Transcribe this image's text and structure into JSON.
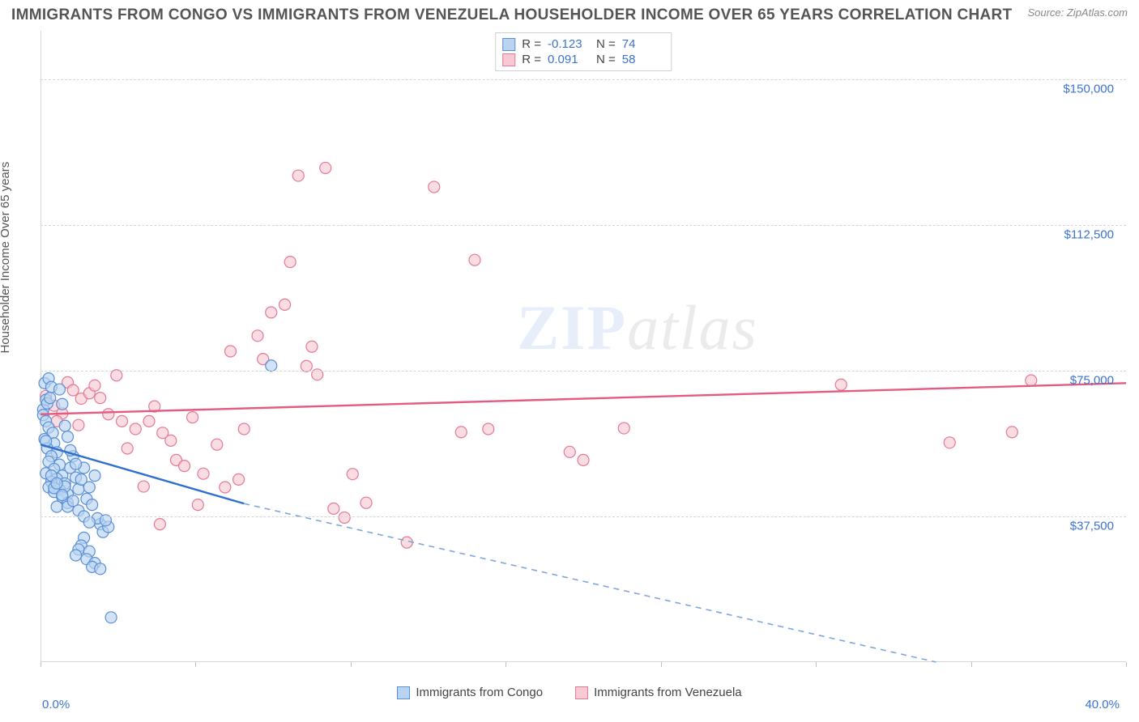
{
  "title": "IMMIGRANTS FROM CONGO VS IMMIGRANTS FROM VENEZUELA HOUSEHOLDER INCOME OVER 65 YEARS CORRELATION CHART",
  "source": "Source: ZipAtlas.com",
  "watermark_zip": "ZIP",
  "watermark_atlas": "atlas",
  "ylabel": "Householder Income Over 65 years",
  "chart": {
    "type": "scatter",
    "xlim": [
      0,
      40
    ],
    "ylim": [
      0,
      162500
    ],
    "xticks_minor": [
      0,
      5.71,
      11.43,
      17.14,
      22.86,
      28.57,
      34.29,
      40
    ],
    "y_gridlines": [
      37500,
      75000,
      112500,
      150000
    ],
    "ytick_labels": [
      "$37,500",
      "$75,000",
      "$112,500",
      "$150,000"
    ],
    "xmin_label": "0.0%",
    "xmax_label": "40.0%",
    "background_color": "#ffffff",
    "grid_color": "#d5d5d5",
    "axis_label_color": "#555555",
    "tick_label_color": "#3b73d1",
    "marker_radius": 7,
    "marker_stroke_width": 1.2,
    "line_width": 2.4
  },
  "series": [
    {
      "name": "Immigrants from Congo",
      "fill": "#b8d4f0",
      "stroke": "#5a8fd6",
      "line_color": "#2f6fd0",
      "dash_color": "#7ea6dd",
      "R_label": "R =",
      "R_value": "-0.123",
      "N_label": "N =",
      "N_value": "74",
      "trend": {
        "x1": 0,
        "y1": 56000,
        "solid_end_x": 7.5,
        "solid_end_y": 40800,
        "x2": 33,
        "y2": 0
      },
      "points": [
        [
          0.1,
          65000
        ],
        [
          0.2,
          67500
        ],
        [
          0.15,
          71800
        ],
        [
          0.3,
          73000
        ],
        [
          0.25,
          66600
        ],
        [
          0.1,
          63600
        ],
        [
          0.4,
          70800
        ],
        [
          0.35,
          68000
        ],
        [
          0.2,
          62000
        ],
        [
          0.3,
          60400
        ],
        [
          0.45,
          59000
        ],
        [
          0.15,
          57400
        ],
        [
          0.5,
          56300
        ],
        [
          0.25,
          55000
        ],
        [
          0.6,
          54000
        ],
        [
          0.4,
          53000
        ],
        [
          0.3,
          51600
        ],
        [
          0.7,
          50800
        ],
        [
          0.5,
          49700
        ],
        [
          0.2,
          48600
        ],
        [
          0.8,
          48000
        ],
        [
          0.6,
          47200
        ],
        [
          0.4,
          46400
        ],
        [
          0.9,
          46000
        ],
        [
          0.3,
          45000
        ],
        [
          0.7,
          44400
        ],
        [
          0.5,
          43800
        ],
        [
          1.0,
          43200
        ],
        [
          0.8,
          42500
        ],
        [
          0.2,
          56900
        ],
        [
          1.2,
          53000
        ],
        [
          1.1,
          50000
        ],
        [
          1.3,
          47500
        ],
        [
          1.4,
          44500
        ],
        [
          1.6,
          50000
        ],
        [
          1.5,
          47000
        ],
        [
          1.8,
          45000
        ],
        [
          1.7,
          42000
        ],
        [
          2.0,
          48000
        ],
        [
          1.9,
          40500
        ],
        [
          2.2,
          35500
        ],
        [
          2.1,
          37000
        ],
        [
          2.3,
          33500
        ],
        [
          2.5,
          34800
        ],
        [
          2.4,
          36500
        ],
        [
          0.6,
          40000
        ],
        [
          1.0,
          41000
        ],
        [
          0.9,
          45200
        ],
        [
          1.6,
          32000
        ],
        [
          1.5,
          30000
        ],
        [
          1.4,
          29000
        ],
        [
          1.3,
          27500
        ],
        [
          1.8,
          28500
        ],
        [
          1.7,
          26500
        ],
        [
          2.0,
          25500
        ],
        [
          1.9,
          24500
        ],
        [
          2.2,
          24000
        ],
        [
          2.6,
          11500
        ],
        [
          0.7,
          70200
        ],
        [
          0.8,
          66400
        ],
        [
          0.9,
          60800
        ],
        [
          1.0,
          58000
        ],
        [
          1.1,
          54500
        ],
        [
          1.3,
          51000
        ],
        [
          0.4,
          48000
        ],
        [
          0.5,
          44800
        ],
        [
          0.6,
          46000
        ],
        [
          0.8,
          43000
        ],
        [
          1.0,
          40000
        ],
        [
          1.2,
          41500
        ],
        [
          1.4,
          39000
        ],
        [
          1.6,
          37500
        ],
        [
          1.8,
          36000
        ],
        [
          8.5,
          76300
        ]
      ]
    },
    {
      "name": "Immigrants from Venezuela",
      "fill": "#f7c9d4",
      "stroke": "#e37a95",
      "line_color": "#e35b80",
      "R_label": "R =",
      "R_value": "0.091",
      "N_label": "N =",
      "N_value": "58",
      "trend": {
        "x1": 0,
        "y1": 63800,
        "x2": 40,
        "y2": 71800
      },
      "points": [
        [
          0.2,
          68500
        ],
        [
          0.5,
          66000
        ],
        [
          1.0,
          72000
        ],
        [
          1.2,
          70000
        ],
        [
          1.5,
          67800
        ],
        [
          1.8,
          69200
        ],
        [
          0.8,
          64000
        ],
        [
          0.6,
          62000
        ],
        [
          1.4,
          61000
        ],
        [
          2.0,
          71200
        ],
        [
          2.2,
          68000
        ],
        [
          2.5,
          63800
        ],
        [
          3.0,
          62000
        ],
        [
          3.5,
          60000
        ],
        [
          4.0,
          62000
        ],
        [
          4.2,
          65800
        ],
        [
          4.5,
          59000
        ],
        [
          4.8,
          57000
        ],
        [
          5.0,
          52000
        ],
        [
          5.3,
          50500
        ],
        [
          5.6,
          63000
        ],
        [
          6.0,
          48500
        ],
        [
          6.5,
          56000
        ],
        [
          7.0,
          80000
        ],
        [
          7.3,
          47000
        ],
        [
          7.5,
          60000
        ],
        [
          8.0,
          84000
        ],
        [
          8.2,
          78000
        ],
        [
          8.5,
          90000
        ],
        [
          9.0,
          92000
        ],
        [
          9.2,
          103000
        ],
        [
          9.5,
          125200
        ],
        [
          9.8,
          76200
        ],
        [
          10.0,
          81200
        ],
        [
          10.2,
          74000
        ],
        [
          10.5,
          127200
        ],
        [
          10.8,
          39500
        ],
        [
          11.2,
          37200
        ],
        [
          11.5,
          48400
        ],
        [
          12.0,
          41000
        ],
        [
          13.5,
          30800
        ],
        [
          14.5,
          122300
        ],
        [
          15.5,
          59200
        ],
        [
          16.0,
          103500
        ],
        [
          16.5,
          60000
        ],
        [
          19.5,
          54100
        ],
        [
          20.0,
          52000
        ],
        [
          21.5,
          60200
        ],
        [
          29.5,
          71400
        ],
        [
          33.5,
          56500
        ],
        [
          35.8,
          59200
        ],
        [
          36.5,
          72500
        ],
        [
          2.8,
          73800
        ],
        [
          4.4,
          35500
        ],
        [
          5.8,
          40500
        ],
        [
          3.2,
          55000
        ],
        [
          3.8,
          45200
        ],
        [
          6.8,
          45000
        ]
      ]
    }
  ],
  "bottom_legend": [
    {
      "label": "Immigrants from Congo",
      "fill": "#b8d4f0",
      "stroke": "#5a8fd6"
    },
    {
      "label": "Immigrants from Venezuela",
      "fill": "#f7c9d4",
      "stroke": "#e37a95"
    }
  ]
}
